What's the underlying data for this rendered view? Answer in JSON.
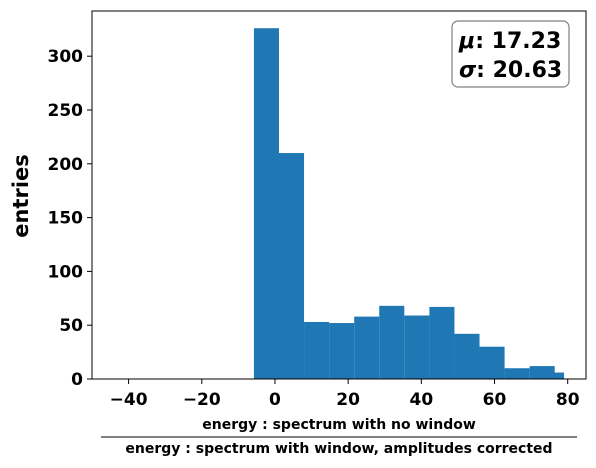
{
  "chart_data": {
    "type": "bar",
    "bin_edges": [
      -5.75,
      1.1,
      7.95,
      14.8,
      21.65,
      28.5,
      35.35,
      42.2,
      49.05,
      55.9,
      62.75,
      69.6,
      76.45
    ],
    "values": [
      326,
      210,
      53,
      52,
      58,
      68,
      59,
      67,
      42,
      30,
      10,
      12
    ],
    "extra_bins": [
      {
        "x0": 72.0,
        "x1": 79.0,
        "value": 6
      }
    ],
    "xlim": [
      -50,
      85
    ],
    "ylim": [
      0,
      342
    ],
    "x_ticks": [
      -40,
      -20,
      0,
      20,
      40,
      60,
      80
    ],
    "x_tick_labels": [
      "−40",
      "−20",
      "0",
      "20",
      "40",
      "60",
      "80"
    ],
    "y_ticks": [
      0,
      50,
      100,
      150,
      200,
      250,
      300
    ],
    "y_tick_labels": [
      "0",
      "50",
      "100",
      "150",
      "200",
      "250",
      "300"
    ],
    "ylabel": "entries",
    "xlabel_top": "energy :  spectrum with no window",
    "xlabel_bottom": "energy : spectrum with window,  amplitudes corrected",
    "bar_color": "#1f77b4",
    "grid": false,
    "stats": {
      "mu_symbol": "μ",
      "mu_value": ": 17.23",
      "sigma_symbol": "σ",
      "sigma_value": ": 20.63",
      "placement": "top-right"
    }
  }
}
